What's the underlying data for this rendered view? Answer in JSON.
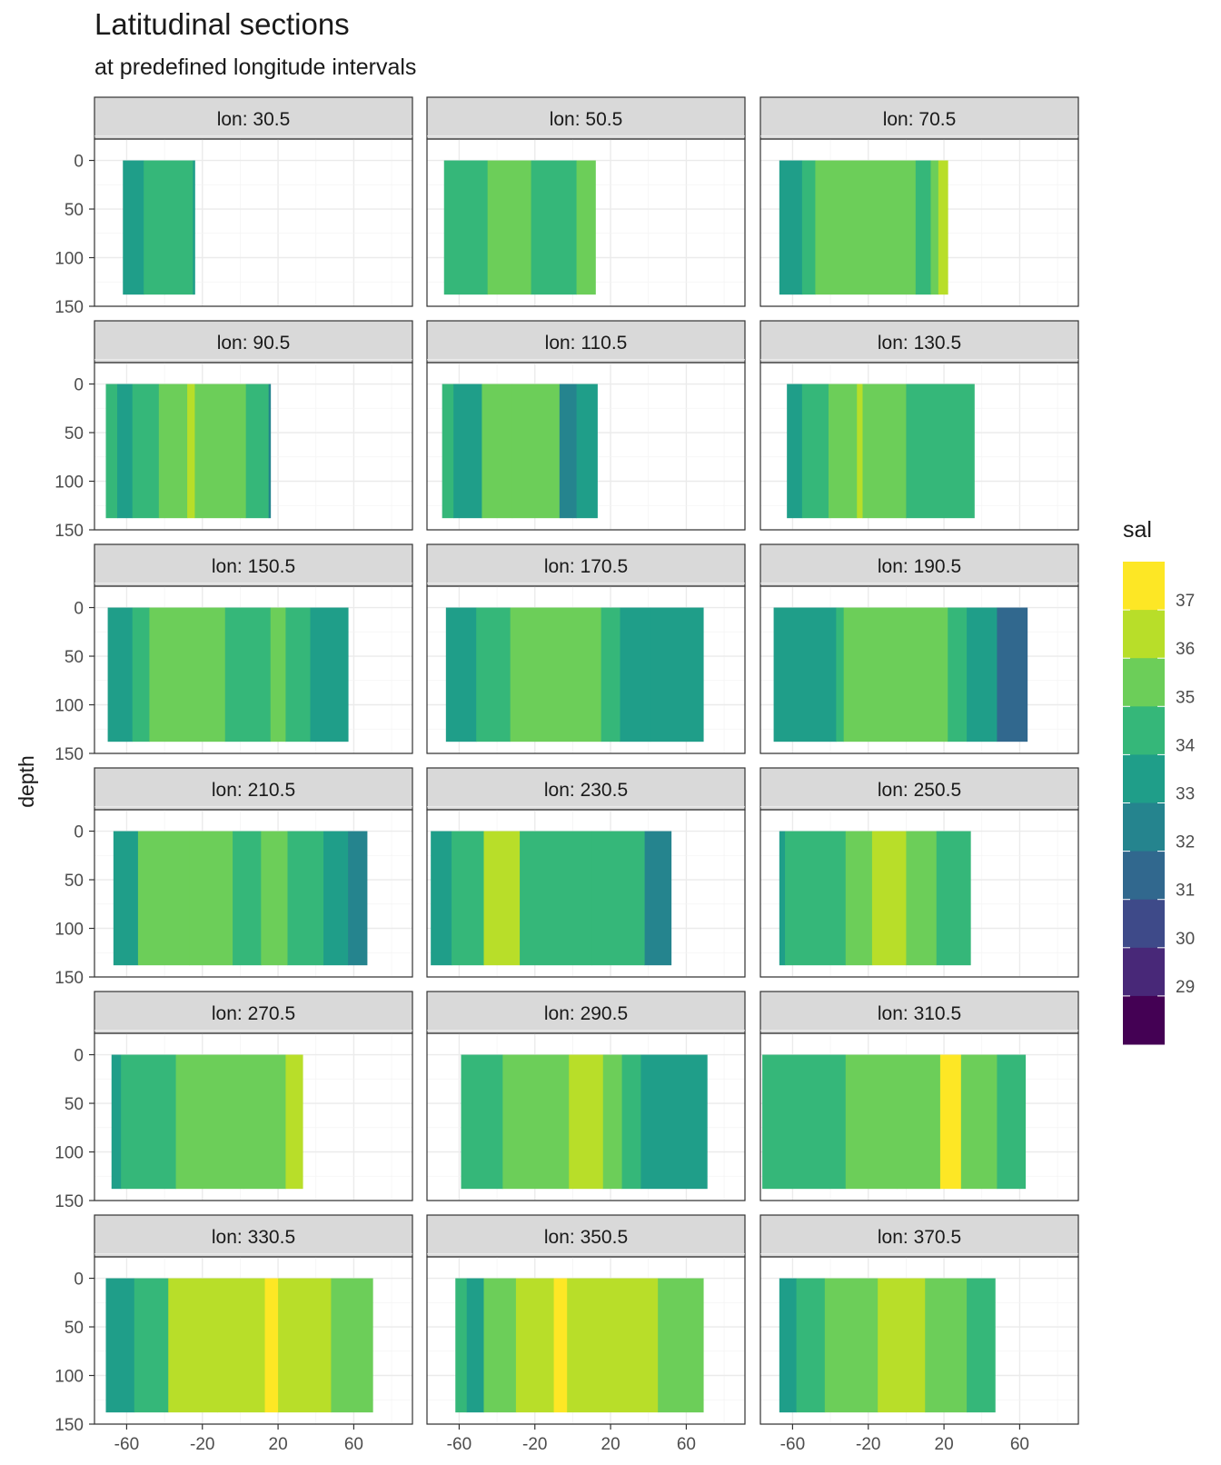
{
  "chart_data": {
    "type": "heatmap",
    "title": "Latitudinal sections",
    "subtitle": "at predefined longitude intervals",
    "xlabel": "",
    "ylabel": "depth",
    "x_ticks": [
      -60,
      -20,
      20,
      60
    ],
    "y_ticks": [
      0,
      50,
      100,
      150
    ],
    "xlim": [
      -77,
      91
    ],
    "ylim": [
      150,
      -22
    ],
    "legend": {
      "title": "sal",
      "position": "right",
      "breaks": [
        37,
        36,
        35,
        34,
        33,
        32,
        31,
        30,
        29
      ],
      "colors": [
        "#FDE725",
        "#B8DE29",
        "#6CCE59",
        "#35B779",
        "#1F9E89",
        "#25848E",
        "#31688E",
        "#3E4A89",
        "#482878",
        "#440154"
      ]
    },
    "panels": [
      {
        "label": "lon: 30.5",
        "extent": [
          -62,
          -24
        ],
        "bands": [
          [
            -62,
            -51,
            33.5
          ],
          [
            -51,
            -40,
            34.5
          ],
          [
            -40,
            -25,
            34.5
          ],
          [
            -25,
            -24,
            33.5
          ]
        ]
      },
      {
        "label": "lon: 50.5",
        "extent": [
          -68,
          12
        ],
        "bands": [
          [
            -68,
            -45,
            34.5
          ],
          [
            -45,
            -22,
            35.5
          ],
          [
            -22,
            2,
            34.5
          ],
          [
            2,
            12,
            35.5
          ]
        ]
      },
      {
        "label": "lon: 70.5",
        "extent": [
          -67,
          22
        ],
        "bands": [
          [
            -67,
            -55,
            33.5
          ],
          [
            -55,
            -48,
            34.5
          ],
          [
            -48,
            5,
            35.5
          ],
          [
            5,
            13,
            34.5
          ],
          [
            13,
            17,
            35.5
          ],
          [
            17,
            22,
            36.5
          ]
        ]
      },
      {
        "label": "lon: 90.5",
        "extent": [
          -71,
          16
        ],
        "bands": [
          [
            -71,
            -65,
            34.5
          ],
          [
            -65,
            -57,
            33.5
          ],
          [
            -57,
            -43,
            34.5
          ],
          [
            -43,
            -28,
            35.5
          ],
          [
            -28,
            -24,
            36.5
          ],
          [
            -24,
            3,
            35.5
          ],
          [
            3,
            15,
            34.5
          ],
          [
            15,
            16,
            32.5
          ]
        ]
      },
      {
        "label": "lon: 110.5",
        "extent": [
          -69,
          13
        ],
        "bands": [
          [
            -69,
            -63,
            34.5
          ],
          [
            -63,
            -48,
            33.5
          ],
          [
            -48,
            -32,
            35.5
          ],
          [
            -32,
            -7,
            35.5
          ],
          [
            -7,
            2,
            32.5
          ],
          [
            2,
            13,
            33.5
          ]
        ]
      },
      {
        "label": "lon: 130.5",
        "extent": [
          -63,
          36
        ],
        "bands": [
          [
            -63,
            -55,
            33.5
          ],
          [
            -55,
            -41,
            34.5
          ],
          [
            -41,
            -26,
            35.5
          ],
          [
            -26,
            -23,
            36.5
          ],
          [
            -23,
            0,
            35.5
          ],
          [
            0,
            36,
            34.5
          ]
        ]
      },
      {
        "label": "lon: 150.5",
        "extent": [
          -70,
          57
        ],
        "bands": [
          [
            -70,
            -57,
            33.5
          ],
          [
            -57,
            -48,
            34.5
          ],
          [
            -48,
            -8,
            35.5
          ],
          [
            -8,
            16,
            34.5
          ],
          [
            16,
            24,
            35.5
          ],
          [
            24,
            37,
            34.5
          ],
          [
            37,
            57,
            33.5
          ]
        ]
      },
      {
        "label": "lon: 170.5",
        "extent": [
          -67,
          69
        ],
        "bands": [
          [
            -67,
            -51,
            33.5
          ],
          [
            -51,
            -33,
            34.5
          ],
          [
            -33,
            15,
            35.5
          ],
          [
            15,
            25,
            34.5
          ],
          [
            25,
            41,
            33.5
          ],
          [
            41,
            69,
            33.5
          ]
        ]
      },
      {
        "label": "lon: 190.5",
        "extent": [
          -70,
          64
        ],
        "bands": [
          [
            -70,
            -37,
            33.5
          ],
          [
            -37,
            -33,
            34.5
          ],
          [
            -33,
            22,
            35.5
          ],
          [
            22,
            32,
            34.5
          ],
          [
            32,
            48,
            33.5
          ],
          [
            48,
            64,
            31.5
          ]
        ]
      },
      {
        "label": "lon: 210.5",
        "extent": [
          -67,
          67
        ],
        "bands": [
          [
            -67,
            -54,
            33.5
          ],
          [
            -54,
            -27,
            35.5
          ],
          [
            -27,
            -4,
            35.5
          ],
          [
            -4,
            11,
            34.5
          ],
          [
            11,
            25,
            35.5
          ],
          [
            25,
            44,
            34.5
          ],
          [
            44,
            57,
            33.5
          ],
          [
            57,
            67,
            32.5
          ]
        ]
      },
      {
        "label": "lon: 230.5",
        "extent": [
          -75,
          52
        ],
        "bands": [
          [
            -75,
            -64,
            33.5
          ],
          [
            -64,
            -47,
            34.5
          ],
          [
            -47,
            -28,
            36.5
          ],
          [
            -28,
            10,
            34.5
          ],
          [
            10,
            38,
            34.5
          ],
          [
            38,
            52,
            32.5
          ]
        ]
      },
      {
        "label": "lon: 250.5",
        "extent": [
          -67,
          34
        ],
        "bands": [
          [
            -67,
            -64,
            33.5
          ],
          [
            -64,
            -32,
            34.5
          ],
          [
            -32,
            -18,
            35.5
          ],
          [
            -18,
            0,
            36.5
          ],
          [
            0,
            16,
            35.5
          ],
          [
            16,
            34,
            34.5
          ]
        ]
      },
      {
        "label": "lon: 270.5",
        "extent": [
          -68,
          33
        ],
        "bands": [
          [
            -68,
            -63,
            33.5
          ],
          [
            -63,
            -34,
            34.5
          ],
          [
            -34,
            2,
            35.5
          ],
          [
            2,
            24,
            35.5
          ],
          [
            24,
            33,
            36.5
          ]
        ]
      },
      {
        "label": "lon: 290.5",
        "extent": [
          -59,
          71
        ],
        "bands": [
          [
            -59,
            -37,
            34.5
          ],
          [
            -37,
            -2,
            35.5
          ],
          [
            -2,
            16,
            36.5
          ],
          [
            16,
            26,
            35.5
          ],
          [
            26,
            36,
            34.5
          ],
          [
            36,
            71,
            33.5
          ]
        ]
      },
      {
        "label": "lon: 310.5",
        "extent": [
          -76,
          63
        ],
        "bands": [
          [
            -76,
            -32,
            34.5
          ],
          [
            -32,
            -5,
            35.5
          ],
          [
            -5,
            18,
            35.5
          ],
          [
            18,
            29,
            37.5
          ],
          [
            29,
            48,
            35.5
          ],
          [
            48,
            63,
            34.5
          ]
        ]
      },
      {
        "label": "lon: 330.5",
        "extent": [
          -71,
          70
        ],
        "bands": [
          [
            -71,
            -56,
            33.5
          ],
          [
            -56,
            -38,
            34.5
          ],
          [
            -38,
            -12,
            36.5
          ],
          [
            -12,
            13,
            36.5
          ],
          [
            13,
            20,
            37.5
          ],
          [
            20,
            48,
            36.5
          ],
          [
            48,
            70,
            35.5
          ]
        ]
      },
      {
        "label": "lon: 350.5",
        "extent": [
          -62,
          69
        ],
        "bands": [
          [
            -62,
            -56,
            34.5
          ],
          [
            -56,
            -47,
            33.5
          ],
          [
            -47,
            -30,
            35.5
          ],
          [
            -30,
            -10,
            36.5
          ],
          [
            -10,
            -3,
            37.5
          ],
          [
            -3,
            45,
            36.5
          ],
          [
            45,
            69,
            35.5
          ]
        ]
      },
      {
        "label": "lon: 370.5",
        "extent": [
          -67,
          47
        ],
        "bands": [
          [
            -67,
            -58,
            33.5
          ],
          [
            -58,
            -43,
            34.5
          ],
          [
            -43,
            -15,
            35.5
          ],
          [
            -15,
            10,
            36.5
          ],
          [
            10,
            32,
            35.5
          ],
          [
            32,
            47,
            34.5
          ]
        ]
      }
    ]
  }
}
